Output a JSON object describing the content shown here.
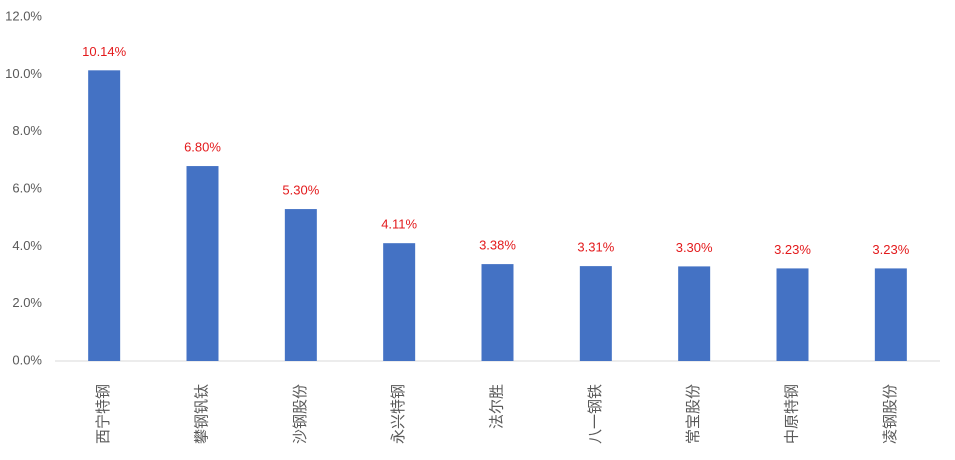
{
  "chart_data": {
    "type": "bar",
    "categories": [
      "西宁特钢",
      "攀钢钒钛",
      "沙钢股份",
      "永兴特钢",
      "法尔胜",
      "八一钢铁",
      "常宝股份",
      "中原特钢",
      "凌钢股份"
    ],
    "values": [
      10.14,
      6.8,
      5.3,
      4.11,
      3.38,
      3.31,
      3.3,
      3.23,
      3.23
    ],
    "value_labels": [
      "10.14%",
      "6.80%",
      "5.30%",
      "4.11%",
      "3.38%",
      "3.31%",
      "3.30%",
      "3.23%",
      "3.23%"
    ],
    "color": "#4472c4",
    "label_color": "#e31a1c",
    "ylim": [
      0,
      12
    ],
    "yticks": [
      {
        "value": 0,
        "label": "0.0%"
      },
      {
        "value": 2,
        "label": "2.0%"
      },
      {
        "value": 4,
        "label": "4.0%"
      },
      {
        "value": 6,
        "label": "6.0%"
      },
      {
        "value": 8,
        "label": "8.0%"
      },
      {
        "value": 10,
        "label": "10.0%"
      },
      {
        "value": 12,
        "label": "12.0%"
      }
    ],
    "grid": false
  }
}
